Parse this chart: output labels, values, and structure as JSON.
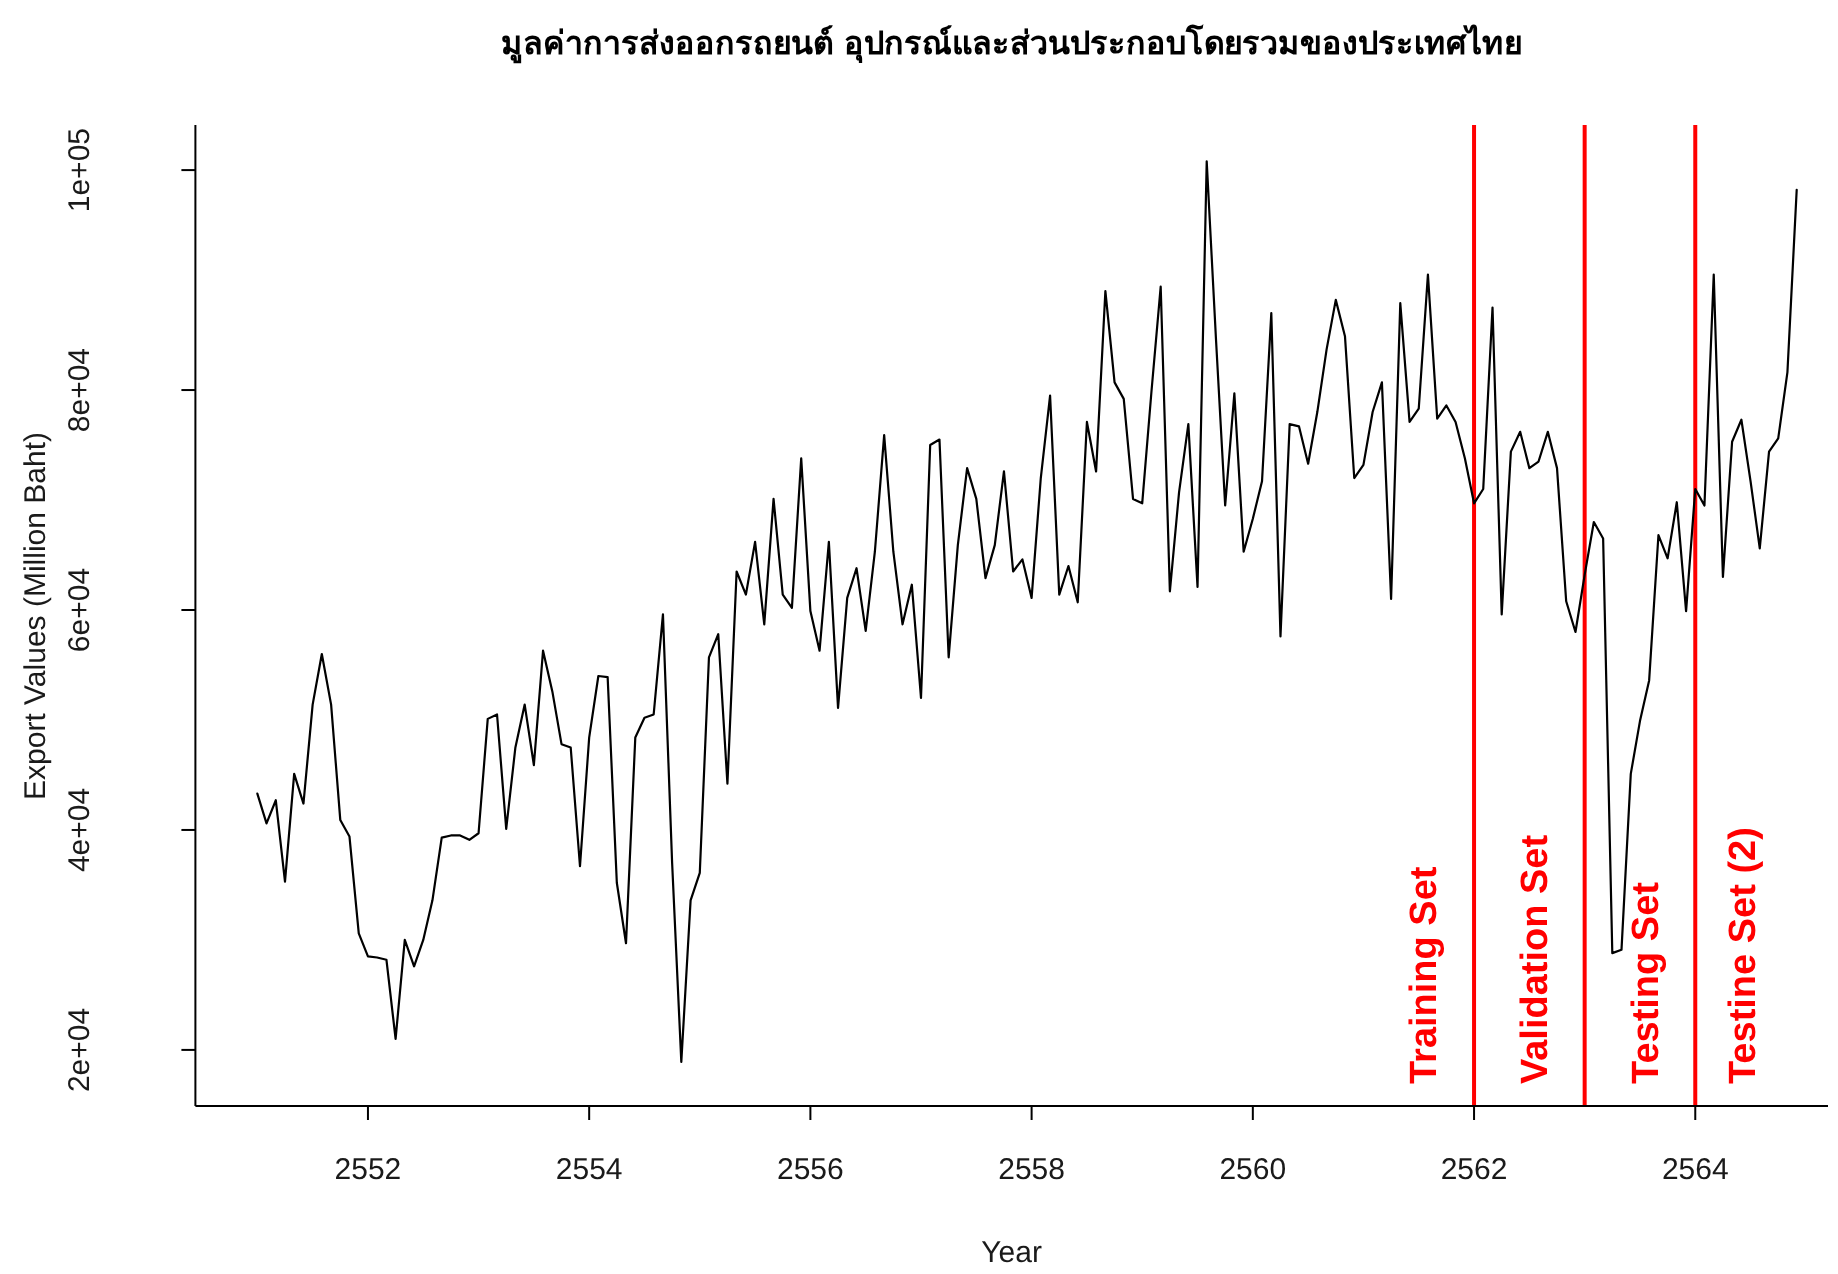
{
  "chart_data": {
    "type": "line",
    "title": "มูลค่าการส่งออกรถยนต์ อุปกรณ์และส่วนประกอบโดยรวมของประเทศไทย",
    "xlabel": "Year",
    "ylabel": "Export Values (Million Baht)",
    "x": [
      2551,
      2551.083,
      2551.167,
      2551.25,
      2551.333,
      2551.417,
      2551.5,
      2551.583,
      2551.667,
      2551.75,
      2551.833,
      2551.917,
      2552,
      2552.083,
      2552.167,
      2552.25,
      2552.333,
      2552.417,
      2552.5,
      2552.583,
      2552.667,
      2552.75,
      2552.833,
      2552.917,
      2553,
      2553.083,
      2553.167,
      2553.25,
      2553.333,
      2553.417,
      2553.5,
      2553.583,
      2553.667,
      2553.75,
      2553.833,
      2553.917,
      2554,
      2554.083,
      2554.167,
      2554.25,
      2554.333,
      2554.417,
      2554.5,
      2554.583,
      2554.667,
      2554.75,
      2554.833,
      2554.917,
      2555,
      2555.083,
      2555.167,
      2555.25,
      2555.333,
      2555.417,
      2555.5,
      2555.583,
      2555.667,
      2555.75,
      2555.833,
      2555.917,
      2556,
      2556.083,
      2556.167,
      2556.25,
      2556.333,
      2556.417,
      2556.5,
      2556.583,
      2556.667,
      2556.75,
      2556.833,
      2556.917,
      2557,
      2557.083,
      2557.167,
      2557.25,
      2557.333,
      2557.417,
      2557.5,
      2557.583,
      2557.667,
      2557.75,
      2557.833,
      2557.917,
      2558,
      2558.083,
      2558.167,
      2558.25,
      2558.333,
      2558.417,
      2558.5,
      2558.583,
      2558.667,
      2558.75,
      2558.833,
      2558.917,
      2559,
      2559.083,
      2559.167,
      2559.25,
      2559.333,
      2559.417,
      2559.5,
      2559.583,
      2559.667,
      2559.75,
      2559.833,
      2559.917,
      2560,
      2560.083,
      2560.167,
      2560.25,
      2560.333,
      2560.417,
      2560.5,
      2560.583,
      2560.667,
      2560.75,
      2560.833,
      2560.917,
      2561,
      2561.083,
      2561.167,
      2561.25,
      2561.333,
      2561.417,
      2561.5,
      2561.583,
      2561.667,
      2561.75,
      2561.833,
      2561.917,
      2562,
      2562.083,
      2562.167,
      2562.25,
      2562.333,
      2562.417,
      2562.5,
      2562.583,
      2562.667,
      2562.75,
      2562.833,
      2562.917,
      2563,
      2563.083,
      2563.167,
      2563.25,
      2563.333,
      2563.417,
      2563.5,
      2563.583,
      2563.667,
      2563.75,
      2563.833,
      2563.917,
      2564,
      2564.083,
      2564.167,
      2564.25,
      2564.333,
      2564.417,
      2564.5,
      2564.583,
      2564.667,
      2564.75,
      2564.833,
      2564.917
    ],
    "values": [
      43300,
      40600,
      42700,
      35300,
      45100,
      42400,
      51400,
      56000,
      51400,
      40900,
      39400,
      30600,
      28500,
      28400,
      28200,
      21000,
      30000,
      27600,
      30000,
      33600,
      39300,
      39500,
      39500,
      39100,
      39700,
      50100,
      50500,
      40100,
      47500,
      51400,
      45900,
      56300,
      52600,
      47800,
      47500,
      36700,
      48400,
      54000,
      53900,
      35200,
      29700,
      48400,
      50200,
      50500,
      59600,
      37000,
      18900,
      33600,
      36100,
      55700,
      57800,
      44200,
      63500,
      61400,
      66200,
      58700,
      70100,
      61400,
      60200,
      73800,
      59900,
      56300,
      66200,
      51100,
      61100,
      63800,
      58100,
      65300,
      75900,
      65300,
      58700,
      62300,
      52000,
      75000,
      75500,
      55700,
      65900,
      72900,
      70100,
      62900,
      65900,
      72600,
      63500,
      64600,
      61100,
      72000,
      79500,
      61400,
      64000,
      60700,
      77100,
      72600,
      89000,
      80700,
      79200,
      70100,
      69700,
      79800,
      89400,
      61700,
      70700,
      76900,
      62100,
      100800,
      84600,
      69500,
      79700,
      65300,
      68300,
      71700,
      87000,
      57600,
      76900,
      76700,
      73300,
      78000,
      83700,
      88200,
      84900,
      72000,
      73200,
      78000,
      80700,
      61000,
      87900,
      77100,
      78300,
      90500,
      77400,
      78600,
      77100,
      73800,
      69700,
      71000,
      87500,
      59600,
      74400,
      76200,
      72900,
      73500,
      76200,
      72900,
      60800,
      58000,
      63200,
      68000,
      66500,
      28800,
      29100,
      45100,
      49900,
      53600,
      66800,
      64700,
      69800,
      59900,
      71000,
      69500,
      90500,
      63000,
      75300,
      77300,
      71700,
      65600,
      74400,
      75600,
      81600,
      98200
    ],
    "color": "#000000",
    "marker": "none",
    "line_style": "solid",
    "xlim": [
      2550.44,
      2565.2
    ],
    "ylim": [
      14900,
      104100
    ],
    "xticks": [
      2552,
      2554,
      2556,
      2558,
      2560,
      2562,
      2564
    ],
    "yticks": [
      {
        "value": 20000,
        "label": "2e+04"
      },
      {
        "value": 40000,
        "label": "4e+04"
      },
      {
        "value": 60000,
        "label": "6e+04"
      },
      {
        "value": 80000,
        "label": "8e+04"
      },
      {
        "value": 100000,
        "label": "1e+05"
      }
    ],
    "ref_lines": [
      {
        "axis": "x",
        "value": 2562,
        "color": "#ff0000"
      },
      {
        "axis": "x",
        "value": 2563,
        "color": "#ff0000"
      },
      {
        "axis": "x",
        "value": 2564,
        "color": "#ff0000"
      }
    ],
    "annotations": [
      "Training Set",
      "Validation Set",
      "Testing Set",
      "Testine Set (2)"
    ]
  }
}
